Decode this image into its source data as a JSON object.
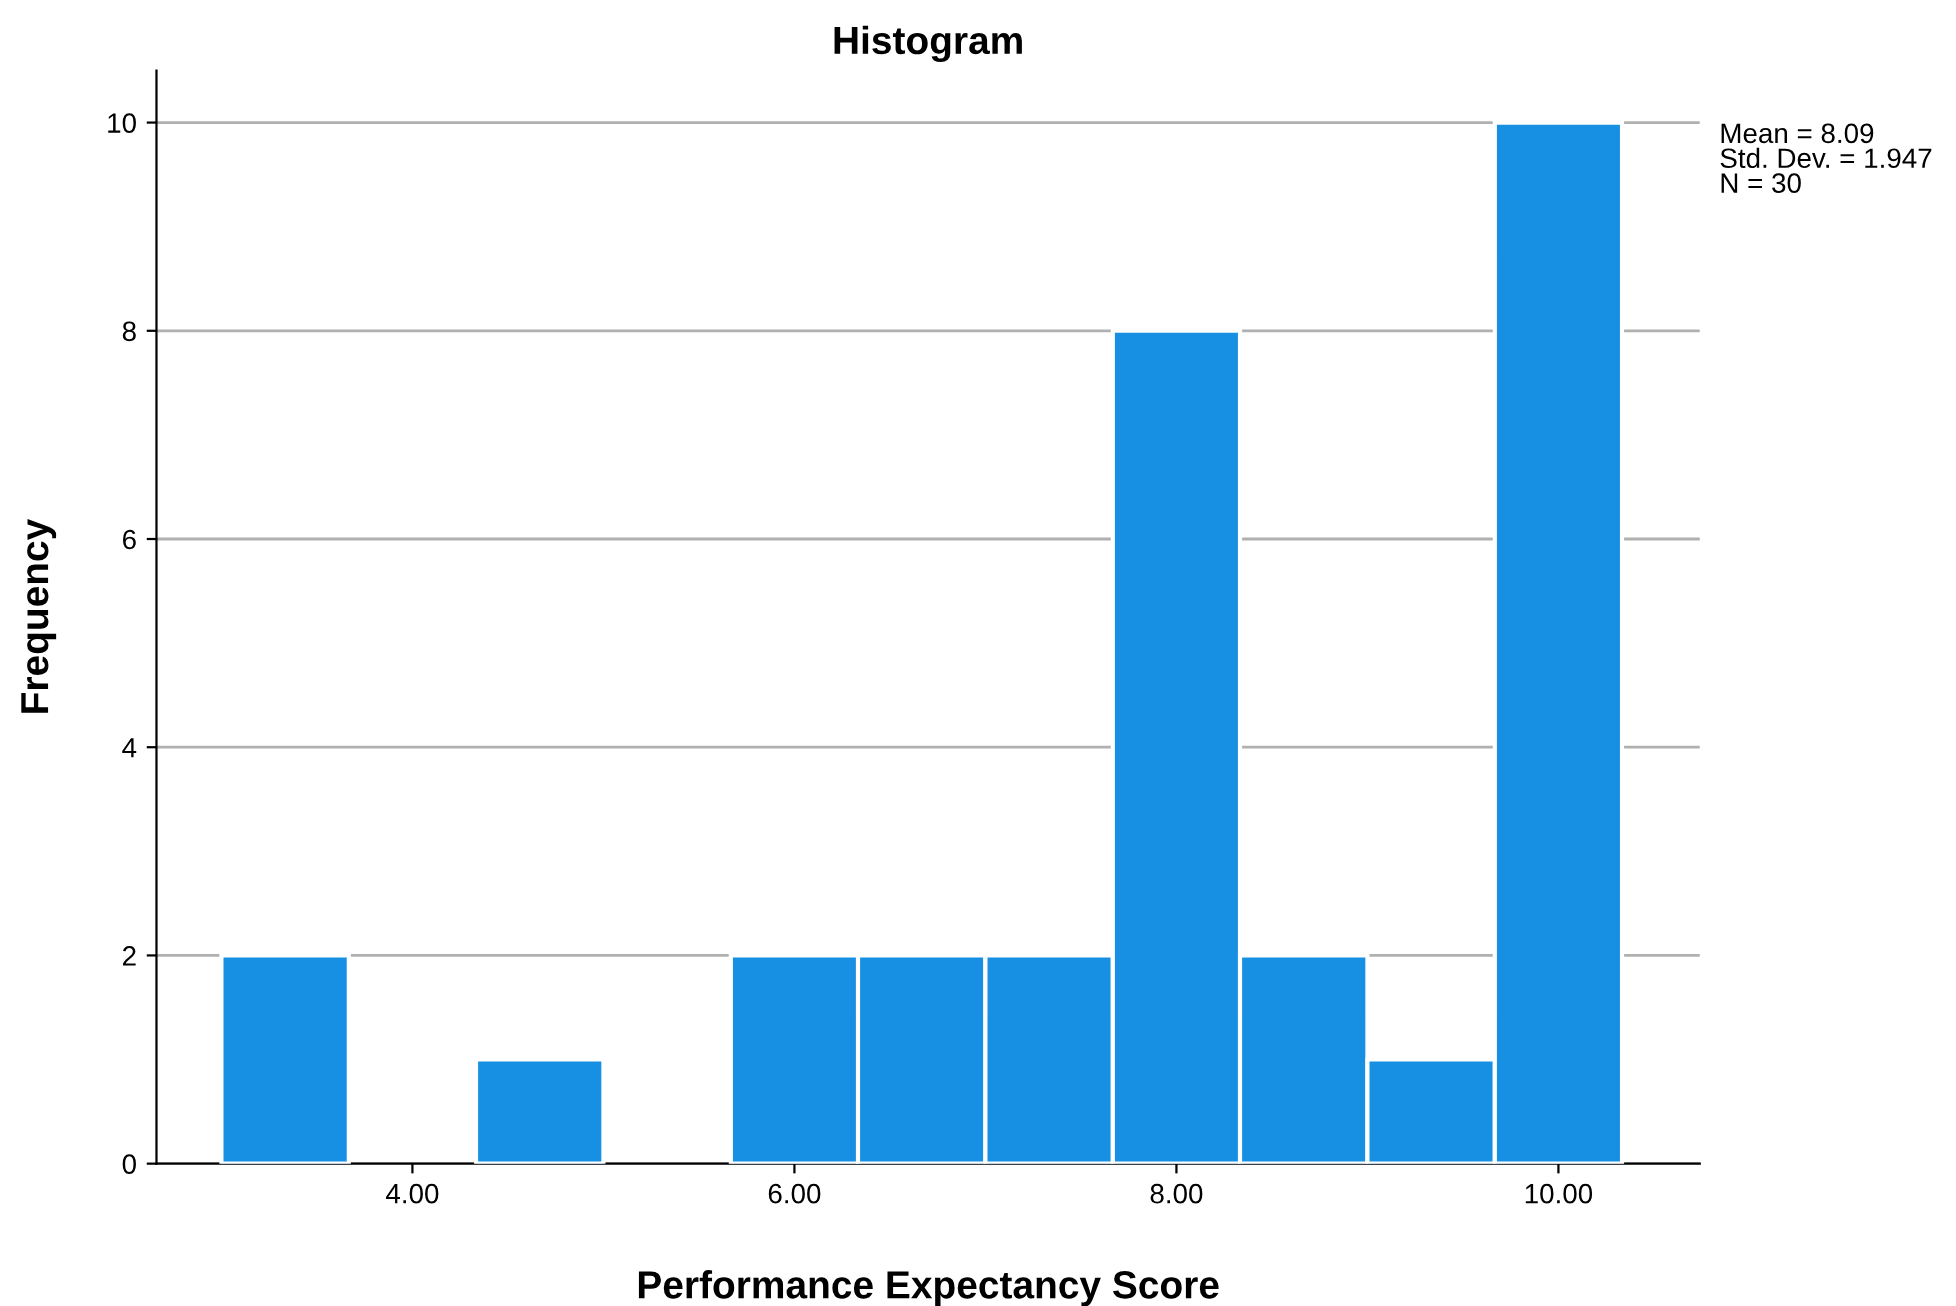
{
  "chart_data": {
    "type": "histogram",
    "title": "Histogram",
    "xlabel": "Performance Expectancy Score",
    "ylabel": "Frequency",
    "bins": [
      3.0,
      3.667,
      4.333,
      5.0,
      5.667,
      6.333,
      7.0,
      7.667,
      8.333,
      9.0,
      9.667,
      10.333
    ],
    "values": [
      2,
      0,
      1,
      0,
      2,
      2,
      2,
      8,
      2,
      1,
      10
    ],
    "color": "#1790e3",
    "xlim": [
      2.66,
      10.74
    ],
    "xticks": [
      {
        "value": 4,
        "label": "4.00"
      },
      {
        "value": 6,
        "label": "6.00"
      },
      {
        "value": 8,
        "label": "8.00"
      },
      {
        "value": 10,
        "label": "10.00"
      }
    ],
    "ylim": [
      0,
      10.5
    ],
    "yticks": [
      0,
      2,
      4,
      6,
      8,
      10
    ],
    "grid": "y",
    "legend": false,
    "annotations": [
      "Mean = 8.09\nStd. Dev. = 1.947\nN = 30"
    ]
  }
}
